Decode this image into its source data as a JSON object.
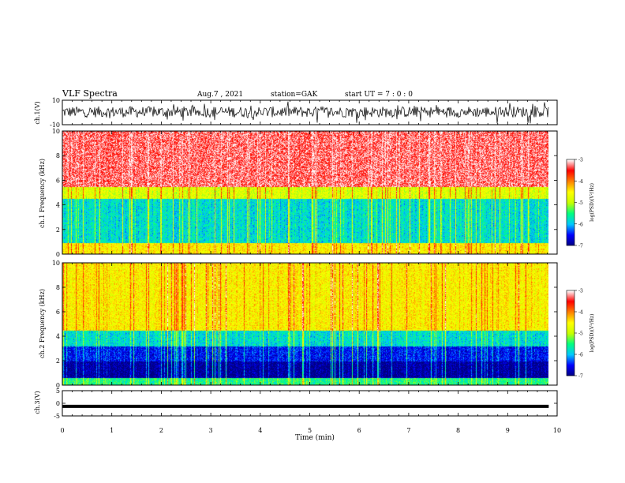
{
  "header": {
    "title": "VLF Spectra",
    "date": "Aug.7 , 2021",
    "station": "station=GAK",
    "start": "start UT = 7 : 0 : 0"
  },
  "colors": {
    "colormap": [
      "#000080",
      "#0000ff",
      "#00c8ff",
      "#00ff80",
      "#c8ff00",
      "#ffff00",
      "#ff8000",
      "#ff0000",
      "#ffffff"
    ],
    "waveform": "#000000"
  },
  "chart_data": [
    {
      "type": "line",
      "panel": "ch.1 waveform",
      "ylabel": "ch.1(V)",
      "ylim": [
        -10,
        10
      ],
      "yticks": [
        "10",
        "-10"
      ],
      "series": [
        {
          "values_summary": "noisy broadband signal around 0 V, range approx -5 to 8 V"
        }
      ]
    },
    {
      "type": "heatmap",
      "panel": "ch.1 spectrogram",
      "ylabel": "ch.1 Frequency (kHz)",
      "ylim": [
        0,
        10
      ],
      "yticks": [
        "0",
        "2",
        "4",
        "6",
        "8",
        "10"
      ],
      "colorbar": {
        "label": "log(PSD)(V²/Hz)",
        "range": [
          -7,
          -3
        ],
        "ticks": [
          "-3",
          "-4",
          "-5",
          "-6",
          "-7"
        ]
      },
      "bands": [
        {
          "freq_khz": [
            0,
            0.9
          ],
          "log_psd": -4.5
        },
        {
          "freq_khz": [
            0.9,
            4.5
          ],
          "log_psd": -5.8
        },
        {
          "freq_khz": [
            4.5,
            5.5
          ],
          "log_psd": -4.8
        },
        {
          "freq_khz": [
            5.5,
            10
          ],
          "log_psd": -3.3
        }
      ]
    },
    {
      "type": "heatmap",
      "panel": "ch.2 spectrogram",
      "ylabel": "ch.2 Frequency (kHz)",
      "ylim": [
        0,
        10
      ],
      "yticks": [
        "0",
        "2",
        "4",
        "6",
        "8",
        "10"
      ],
      "colorbar": {
        "label": "log(PSD)(V²/Hz)",
        "range": [
          -7,
          -3
        ],
        "ticks": [
          "-3",
          "-4",
          "-5",
          "-6",
          "-7"
        ]
      },
      "bands": [
        {
          "freq_khz": [
            0,
            0.6
          ],
          "log_psd": -5.5
        },
        {
          "freq_khz": [
            0.6,
            2.0
          ],
          "log_psd": -6.9
        },
        {
          "freq_khz": [
            2.0,
            3.2
          ],
          "log_psd": -6.5
        },
        {
          "freq_khz": [
            3.2,
            4.5
          ],
          "log_psd": -5.8
        },
        {
          "freq_khz": [
            4.5,
            10
          ],
          "log_psd": -4.5
        }
      ]
    },
    {
      "type": "line",
      "panel": "ch.3 waveform",
      "ylabel": "ch.3(V)",
      "ylim": [
        -5,
        5
      ],
      "yticks": [
        "5",
        "0",
        "-5"
      ],
      "series": [
        {
          "values_summary": "flat line near -1 V"
        }
      ]
    }
  ],
  "x_axis": {
    "label": "Time (min)",
    "range": [
      0,
      10
    ],
    "ticks": [
      "0",
      "1",
      "2",
      "3",
      "4",
      "5",
      "6",
      "7",
      "8",
      "9",
      "10"
    ],
    "data_end_min": 9.83
  }
}
